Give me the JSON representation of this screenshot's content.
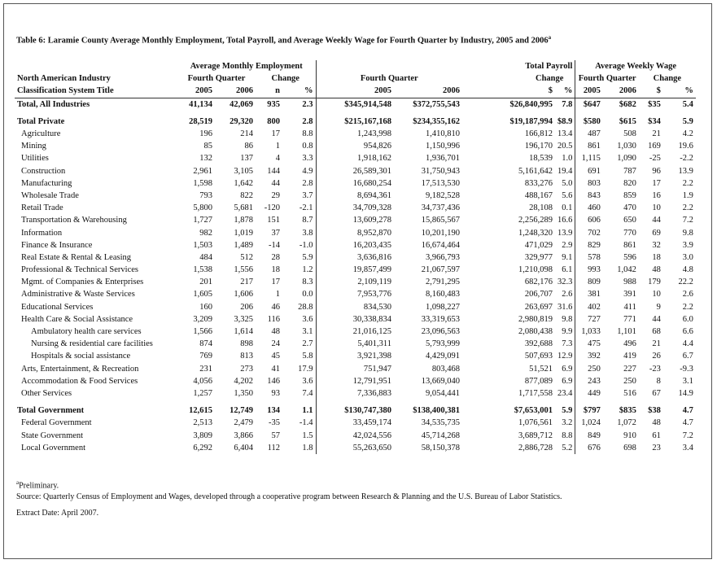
{
  "title": "Table 6:  Laramie County Average Monthly Employment, Total Payroll, and Average Weekly Wage for Fourth Quarter by Industry, 2005 and 2006",
  "title_note": "a",
  "table": {
    "header_label": [
      "North American Industry",
      "Classification System Title"
    ],
    "groups": [
      "Average Monthly Employment",
      "Total Payroll",
      "Average Weekly Wage"
    ],
    "subgroups": [
      "Fourth Quarter",
      "Change",
      "Fourth Quarter",
      "Change",
      "Fourth Quarter",
      "Change"
    ],
    "columns": [
      "2005",
      "2006",
      "n",
      "%",
      "2005",
      "2006",
      "$",
      "%",
      "2005",
      "2006",
      "$",
      "%"
    ],
    "rows": [
      {
        "label": "Total, All Industries",
        "values": [
          "41,134",
          "42,069",
          "935",
          "2.3",
          "$345,914,548",
          "$372,755,543",
          "$26,840,995",
          "7.8",
          "$647",
          "$682",
          "$35",
          "5.4"
        ]
      },
      {
        "label": "Total Private",
        "values": [
          "28,519",
          "29,320",
          "800",
          "2.8",
          "$215,167,168",
          "$234,355,162",
          "$19,187,994",
          "$8.9",
          "$580",
          "$615",
          "$34",
          "5.9"
        ]
      },
      {
        "label": "Agriculture",
        "values": [
          "196",
          "214",
          "17",
          "8.8",
          "1,243,998",
          "1,410,810",
          "166,812",
          "13.4",
          "487",
          "508",
          "21",
          "4.2"
        ]
      },
      {
        "label": "Mining",
        "values": [
          "85",
          "86",
          "1",
          "0.8",
          "954,826",
          "1,150,996",
          "196,170",
          "20.5",
          "861",
          "1,030",
          "169",
          "19.6"
        ]
      },
      {
        "label": "Utilities",
        "values": [
          "132",
          "137",
          "4",
          "3.3",
          "1,918,162",
          "1,936,701",
          "18,539",
          "1.0",
          "1,115",
          "1,090",
          "-25",
          "-2.2"
        ]
      },
      {
        "label": "Construction",
        "values": [
          "2,961",
          "3,105",
          "144",
          "4.9",
          "26,589,301",
          "31,750,943",
          "5,161,642",
          "19.4",
          "691",
          "787",
          "96",
          "13.9"
        ]
      },
      {
        "label": "Manufacturing",
        "values": [
          "1,598",
          "1,642",
          "44",
          "2.8",
          "16,680,254",
          "17,513,530",
          "833,276",
          "5.0",
          "803",
          "820",
          "17",
          "2.2"
        ]
      },
      {
        "label": "Wholesale Trade",
        "values": [
          "793",
          "822",
          "29",
          "3.7",
          "8,694,361",
          "9,182,528",
          "488,167",
          "5.6",
          "843",
          "859",
          "16",
          "1.9"
        ]
      },
      {
        "label": "Retail Trade",
        "values": [
          "5,800",
          "5,681",
          "-120",
          "-2.1",
          "34,709,328",
          "34,737,436",
          "28,108",
          "0.1",
          "460",
          "470",
          "10",
          "2.2"
        ]
      },
      {
        "label": "Transportation & Warehousing",
        "values": [
          "1,727",
          "1,878",
          "151",
          "8.7",
          "13,609,278",
          "15,865,567",
          "2,256,289",
          "16.6",
          "606",
          "650",
          "44",
          "7.2"
        ]
      },
      {
        "label": "Information",
        "values": [
          "982",
          "1,019",
          "37",
          "3.8",
          "8,952,870",
          "10,201,190",
          "1,248,320",
          "13.9",
          "702",
          "770",
          "69",
          "9.8"
        ]
      },
      {
        "label": "Finance & Insurance",
        "values": [
          "1,503",
          "1,489",
          "-14",
          "-1.0",
          "16,203,435",
          "16,674,464",
          "471,029",
          "2.9",
          "829",
          "861",
          "32",
          "3.9"
        ]
      },
      {
        "label": "Real Estate & Rental & Leasing",
        "values": [
          "484",
          "512",
          "28",
          "5.9",
          "3,636,816",
          "3,966,793",
          "329,977",
          "9.1",
          "578",
          "596",
          "18",
          "3.0"
        ]
      },
      {
        "label": "Professional & Technical Services",
        "values": [
          "1,538",
          "1,556",
          "18",
          "1.2",
          "19,857,499",
          "21,067,597",
          "1,210,098",
          "6.1",
          "993",
          "1,042",
          "48",
          "4.8"
        ]
      },
      {
        "label": "Mgmt. of Companies & Enterprises",
        "values": [
          "201",
          "217",
          "17",
          "8.3",
          "2,109,119",
          "2,791,295",
          "682,176",
          "32.3",
          "809",
          "988",
          "179",
          "22.2"
        ]
      },
      {
        "label": "Administrative & Waste Services",
        "values": [
          "1,605",
          "1,606",
          "1",
          "0.0",
          "7,953,776",
          "8,160,483",
          "206,707",
          "2.6",
          "381",
          "391",
          "10",
          "2.6"
        ]
      },
      {
        "label": "Educational Services",
        "values": [
          "160",
          "206",
          "46",
          "28.8",
          "834,530",
          "1,098,227",
          "263,697",
          "31.6",
          "402",
          "411",
          "9",
          "2.2"
        ]
      },
      {
        "label": "Health Care & Social Assistance",
        "values": [
          "3,209",
          "3,325",
          "116",
          "3.6",
          "30,338,834",
          "33,319,653",
          "2,980,819",
          "9.8",
          "727",
          "771",
          "44",
          "6.0"
        ]
      },
      {
        "label": "Ambulatory health care services",
        "values": [
          "1,566",
          "1,614",
          "48",
          "3.1",
          "21,016,125",
          "23,096,563",
          "2,080,438",
          "9.9",
          "1,033",
          "1,101",
          "68",
          "6.6"
        ]
      },
      {
        "label": "Nursing & residential care facilities",
        "values": [
          "874",
          "898",
          "24",
          "2.7",
          "5,401,311",
          "5,793,999",
          "392,688",
          "7.3",
          "475",
          "496",
          "21",
          "4.4"
        ]
      },
      {
        "label": "Hospitals & social assistance",
        "values": [
          "769",
          "813",
          "45",
          "5.8",
          "3,921,398",
          "4,429,091",
          "507,693",
          "12.9",
          "392",
          "419",
          "26",
          "6.7"
        ]
      },
      {
        "label": "Arts, Entertainment, & Recreation",
        "values": [
          "231",
          "273",
          "41",
          "17.9",
          "751,947",
          "803,468",
          "51,521",
          "6.9",
          "250",
          "227",
          "-23",
          "-9.3"
        ]
      },
      {
        "label": "Accommodation & Food Services",
        "values": [
          "4,056",
          "4,202",
          "146",
          "3.6",
          "12,791,951",
          "13,669,040",
          "877,089",
          "6.9",
          "243",
          "250",
          "8",
          "3.1"
        ]
      },
      {
        "label": "Other Services",
        "values": [
          "1,257",
          "1,350",
          "93",
          "7.4",
          "7,336,883",
          "9,054,441",
          "1,717,558",
          "23.4",
          "449",
          "516",
          "67",
          "14.9"
        ]
      },
      {
        "label": "Total Government",
        "values": [
          "12,615",
          "12,749",
          "134",
          "1.1",
          "$130,747,380",
          "$138,400,381",
          "$7,653,001",
          "5.9",
          "$797",
          "$835",
          "$38",
          "4.7"
        ]
      },
      {
        "label": "Federal Government",
        "values": [
          "2,513",
          "2,479",
          "-35",
          "-1.4",
          "33,459,174",
          "34,535,735",
          "1,076,561",
          "3.2",
          "1,024",
          "1,072",
          "48",
          "4.7"
        ]
      },
      {
        "label": "State Government",
        "values": [
          "3,809",
          "3,866",
          "57",
          "1.5",
          "42,024,556",
          "45,714,268",
          "3,689,712",
          "8.8",
          "849",
          "910",
          "61",
          "7.2"
        ]
      },
      {
        "label": "Local Government",
        "values": [
          "6,292",
          "6,404",
          "112",
          "1.8",
          "55,263,650",
          "58,150,378",
          "2,886,728",
          "5.2",
          "676",
          "698",
          "23",
          "3.4"
        ]
      }
    ]
  },
  "footnotes": {
    "preliminary_mark": "a",
    "preliminary": "Preliminary.",
    "source": "Source: Quarterly Census of Employment and Wages, developed through a cooperative program between Research & Planning and the U.S. Bureau of Labor Statistics.",
    "extract": "Extract Date: April 2007."
  }
}
